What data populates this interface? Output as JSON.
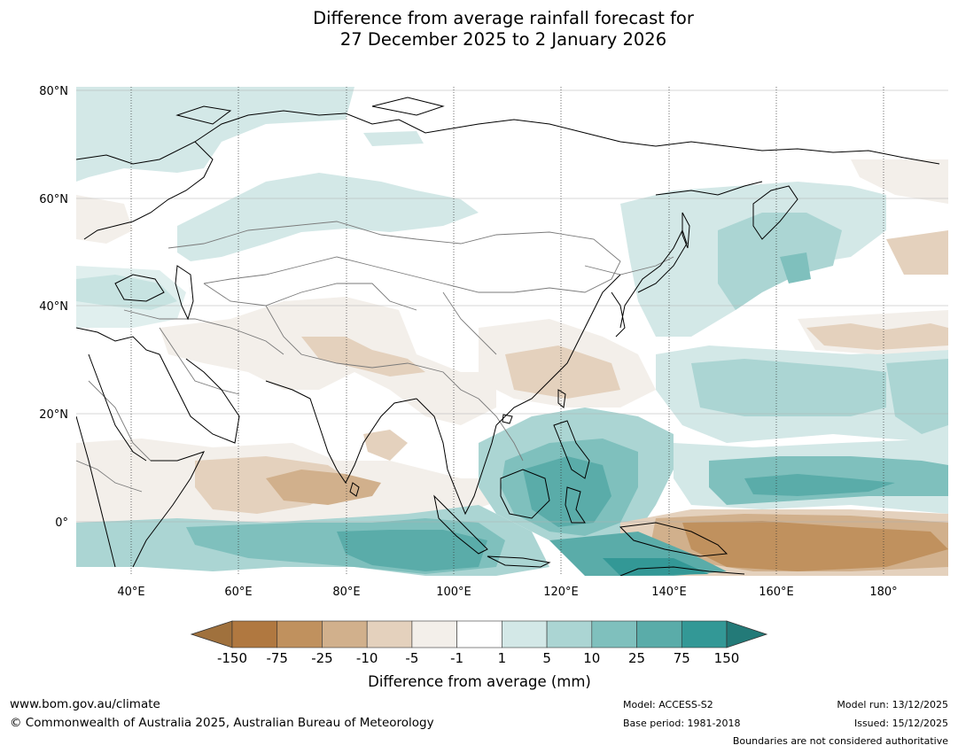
{
  "title": {
    "line1": "Difference from average rainfall forecast for",
    "line2": "27 December 2025 to 2 January 2026"
  },
  "map": {
    "lat_labels": [
      "80°N",
      "60°N",
      "40°N",
      "20°N",
      "0°"
    ],
    "lon_labels": [
      "40°E",
      "60°E",
      "80°E",
      "100°E",
      "120°E",
      "140°E",
      "160°E",
      "180°"
    ]
  },
  "colorbar": {
    "ticks": [
      "-150",
      "-75",
      "-25",
      "-10",
      "-5",
      "-1",
      "1",
      "5",
      "10",
      "25",
      "75",
      "150"
    ],
    "colors": [
      "#a0713d",
      "#b07840",
      "#c0915e",
      "#d1b08c",
      "#e4d1bd",
      "#f3efea",
      "#ffffff",
      "#d3e8e7",
      "#abd5d3",
      "#7fc0bd",
      "#5aaca9",
      "#339896",
      "#237a78"
    ],
    "label": "Difference from average (mm)"
  },
  "footer": {
    "url": "www.bom.gov.au/climate",
    "copyright": "© Commonwealth of Australia 2025, Australian Bureau of Meteorology",
    "model": "Model: ACCESS-S2",
    "base_period": "Base period: 1981-2018",
    "model_run": "Model run: 13/12/2025",
    "issued": "Issued: 15/12/2025",
    "disclaimer": "Boundaries are not considered authoritative"
  }
}
